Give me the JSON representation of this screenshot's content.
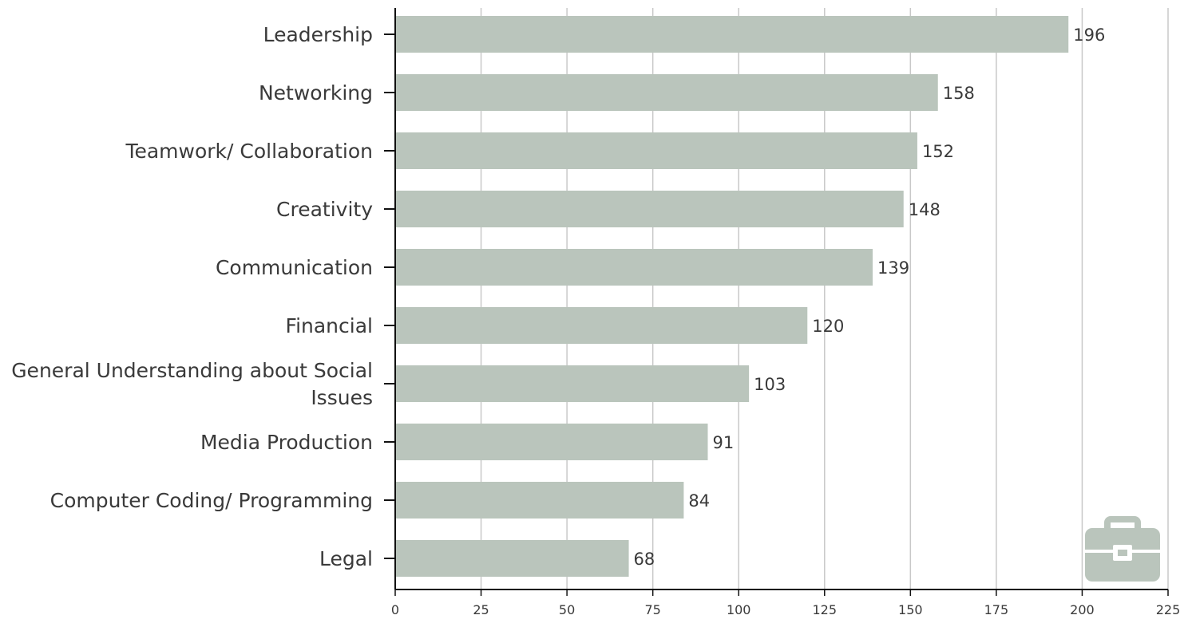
{
  "chart_data": {
    "type": "bar",
    "orientation": "horizontal",
    "categories": [
      "Leadership",
      "Networking",
      "Teamwork/ Collaboration",
      "Creativity",
      "Communication",
      "Financial",
      "General Understanding about Social Issues",
      "Media Production",
      "Computer Coding/ Programming",
      "Legal"
    ],
    "category_lines": [
      [
        "Leadership"
      ],
      [
        "Networking"
      ],
      [
        "Teamwork/ Collaboration"
      ],
      [
        "Creativity"
      ],
      [
        "Communication"
      ],
      [
        "Financial"
      ],
      [
        "General Understanding about Social",
        "Issues"
      ],
      [
        "Media Production"
      ],
      [
        "Computer Coding/ Programming"
      ],
      [
        "Legal"
      ]
    ],
    "values": [
      196,
      158,
      152,
      148,
      139,
      120,
      103,
      91,
      84,
      68
    ],
    "xlim": [
      0,
      225
    ],
    "xticks": [
      0,
      25,
      50,
      75,
      100,
      125,
      150,
      175,
      200,
      225
    ],
    "grid": "vertical",
    "data_labels": true,
    "title": "",
    "xlabel": "",
    "ylabel": "",
    "colors": {
      "bar": "#bac5bc",
      "grid": "#c8c8c8",
      "axis": "#111111",
      "text": "#3a3a3a",
      "icon": "#bac5bc"
    },
    "icon": "briefcase-icon"
  }
}
